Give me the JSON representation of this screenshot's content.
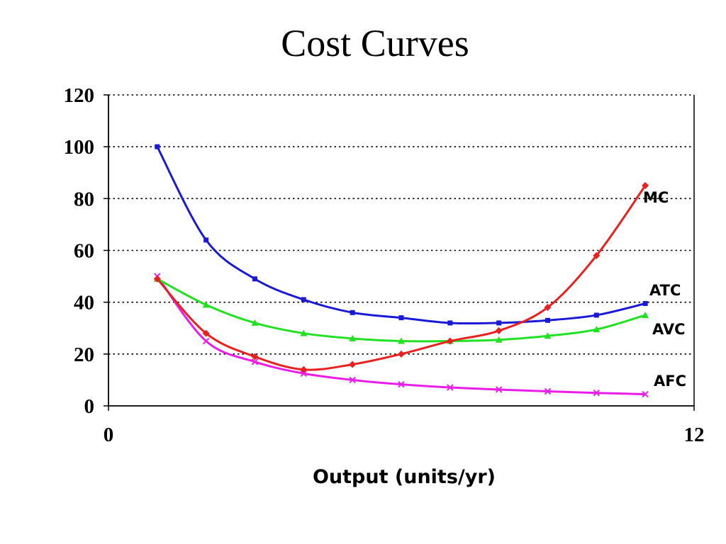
{
  "chart_data": {
    "type": "line",
    "title": "Cost Curves",
    "xlabel": "Output (units/yr)",
    "ylabel": "",
    "xlim": [
      0,
      12
    ],
    "ylim": [
      0,
      120
    ],
    "x_ticks": [
      "0",
      "12"
    ],
    "y_ticks": [
      "0",
      "20",
      "40",
      "60",
      "80",
      "100",
      "120"
    ],
    "grid": "horizontal dotted",
    "x": [
      1,
      2,
      3,
      4,
      5,
      6,
      7,
      8,
      9,
      10,
      11
    ],
    "series": [
      {
        "name": "MC",
        "color": "#e82020",
        "marker": "diamond",
        "values": [
          49,
          28,
          19,
          14,
          16,
          20,
          25,
          29,
          38,
          58,
          85
        ]
      },
      {
        "name": "ATC",
        "color": "#1a1ad6",
        "marker": "square",
        "values": [
          100,
          64,
          49,
          41,
          36,
          34,
          32,
          32,
          33,
          35,
          39.5
        ]
      },
      {
        "name": "AVC",
        "color": "#22e022",
        "marker": "triangle",
        "values": [
          49,
          39,
          32,
          28,
          26,
          25,
          25,
          25.5,
          27,
          29.5,
          35
        ]
      },
      {
        "name": "AFC",
        "color": "#e81ee8",
        "marker": "x",
        "values": [
          50,
          25,
          17,
          12.5,
          10,
          8.3,
          7.1,
          6.3,
          5.6,
          5,
          4.5
        ]
      }
    ]
  }
}
